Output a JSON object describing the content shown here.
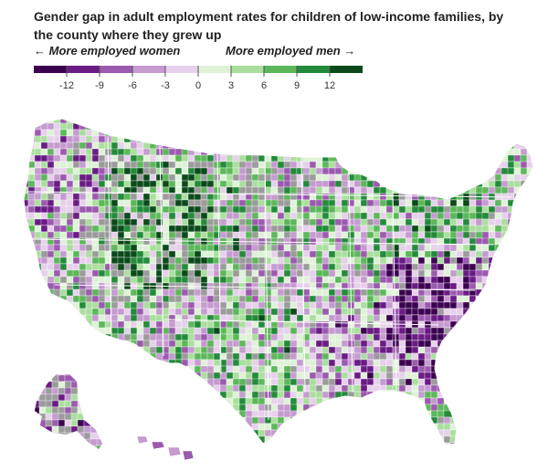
{
  "title": "Gender gap in adult employment rates for children of low-income families, by the county where they grew up",
  "legend": {
    "left_label": "← More employed women",
    "right_label": "More employed men →",
    "bins": [
      {
        "color": "#3b0050"
      },
      {
        "color": "#6a1b84"
      },
      {
        "color": "#9c5aaf"
      },
      {
        "color": "#c59bd0"
      },
      {
        "color": "#e6d0eb"
      },
      {
        "color": "#dff2d8"
      },
      {
        "color": "#aadf9e"
      },
      {
        "color": "#5cb85a"
      },
      {
        "color": "#238b3a"
      },
      {
        "color": "#0b4a1a"
      }
    ],
    "ticks": [
      "-12",
      "-9",
      "-6",
      "-3",
      "0",
      "3",
      "6",
      "9",
      "12"
    ]
  },
  "colors": {
    "no_data": "#9b9b9b",
    "borders": "#ffffff"
  }
}
